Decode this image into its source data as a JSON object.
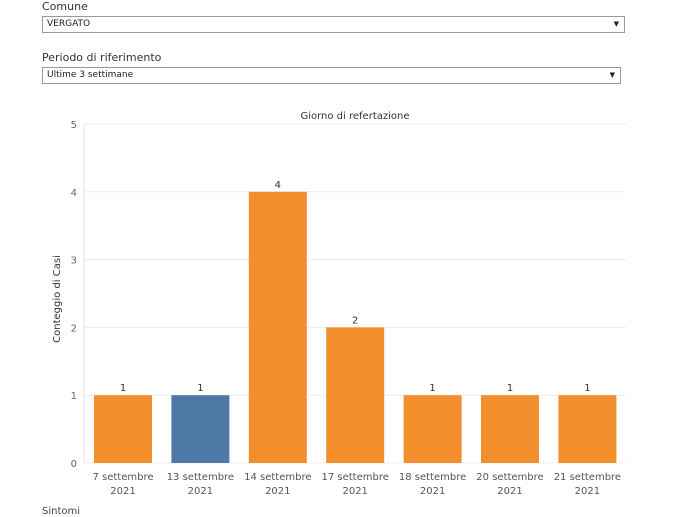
{
  "filters": {
    "comune_label": "Comune",
    "comune_value": "VERGATO",
    "periodo_label": "Periodo di riferimento",
    "periodo_value": "Ultime 3 settimane"
  },
  "footer_text": "Sintomi",
  "chart_data": {
    "type": "bar",
    "title": "Giorno di refertazione",
    "ylabel": "Conteggio di Casi",
    "xlabel": "",
    "ylim": [
      0,
      5
    ],
    "yticks": [
      0,
      1,
      2,
      3,
      4,
      5
    ],
    "grid": true,
    "categories": [
      [
        "7 settembre",
        "2021"
      ],
      [
        "13 settembre",
        "2021"
      ],
      [
        "14 settembre",
        "2021"
      ],
      [
        "17 settembre",
        "2021"
      ],
      [
        "18 settembre",
        "2021"
      ],
      [
        "20 settembre",
        "2021"
      ],
      [
        "21 settembre",
        "2021"
      ]
    ],
    "values": [
      1,
      1,
      4,
      2,
      1,
      1,
      1
    ],
    "bar_colors": [
      "#f28e2b",
      "#4e79a7",
      "#f28e2b",
      "#f28e2b",
      "#f28e2b",
      "#f28e2b",
      "#f28e2b"
    ],
    "data_labels": [
      "1",
      "1",
      "4",
      "2",
      "1",
      "1",
      "1"
    ]
  }
}
